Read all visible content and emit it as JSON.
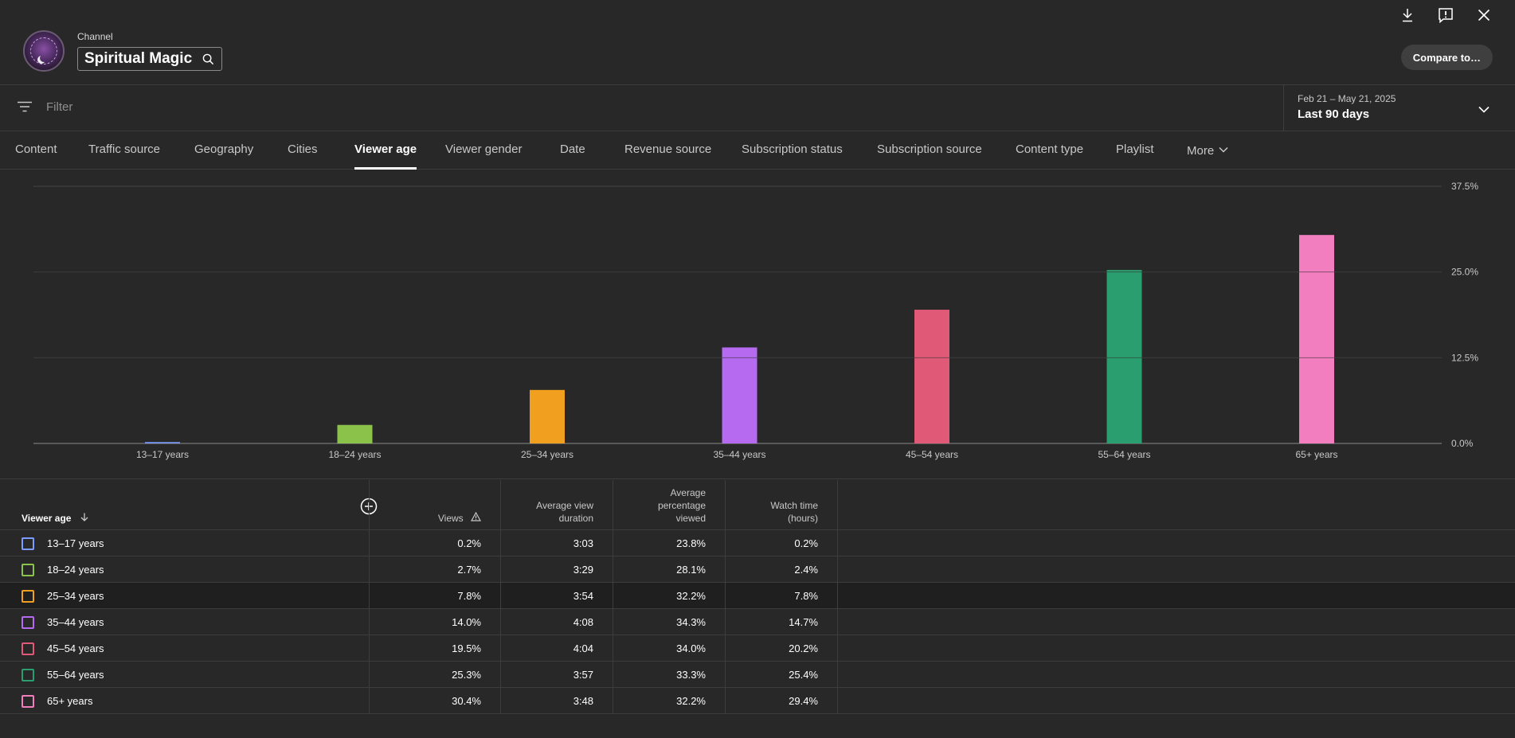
{
  "header": {
    "channel_label": "Channel",
    "channel_name": "Spiritual Magic",
    "compare_label": "Compare to…"
  },
  "filter": {
    "placeholder": "Filter"
  },
  "date": {
    "range": "Feb 21 – May 21, 2025",
    "label": "Last 90 days"
  },
  "tabs": [
    {
      "label": "Content"
    },
    {
      "label": "Traffic source"
    },
    {
      "label": "Geography"
    },
    {
      "label": "Cities"
    },
    {
      "label": "Viewer age"
    },
    {
      "label": "Viewer gender"
    },
    {
      "label": "Date"
    },
    {
      "label": "Revenue source"
    },
    {
      "label": "Subscription status"
    },
    {
      "label": "Subscription source"
    },
    {
      "label": "Content type"
    },
    {
      "label": "Playlist"
    },
    {
      "label": "More"
    }
  ],
  "active_tab": "Viewer age",
  "chart_data": {
    "type": "bar",
    "categories": [
      "13–17 years",
      "18–24 years",
      "25–34 years",
      "35–44 years",
      "45–54 years",
      "55–64 years",
      "65+ years"
    ],
    "values": [
      0.2,
      2.7,
      7.8,
      14.0,
      19.5,
      25.3,
      30.4
    ],
    "colors": [
      "#7c9cff",
      "#8bc34a",
      "#f0a01e",
      "#b56af0",
      "#e05a78",
      "#2a9e6e",
      "#f27dbf"
    ],
    "ylim": [
      0,
      37.5
    ],
    "y_ticks": [
      "0.0%",
      "12.5%",
      "25.0%",
      "37.5%"
    ],
    "y_tick_values": [
      0,
      12.5,
      25,
      37.5
    ],
    "grid": true
  },
  "table": {
    "headers": {
      "dimension": "Viewer age",
      "views": "Views",
      "avg_view_duration": [
        "Average view",
        "duration"
      ],
      "avg_pct_viewed": [
        "Average",
        "percentage",
        "viewed"
      ],
      "watch_time": [
        "Watch time",
        "(hours)"
      ]
    },
    "rows": [
      {
        "label": "13–17 years",
        "views": "0.2%",
        "duration": "3:03",
        "pct": "23.8%",
        "watch": "0.2%"
      },
      {
        "label": "18–24 years",
        "views": "2.7%",
        "duration": "3:29",
        "pct": "28.1%",
        "watch": "2.4%"
      },
      {
        "label": "25–34 years",
        "views": "7.8%",
        "duration": "3:54",
        "pct": "32.2%",
        "watch": "7.8%"
      },
      {
        "label": "35–44 years",
        "views": "14.0%",
        "duration": "4:08",
        "pct": "34.3%",
        "watch": "14.7%"
      },
      {
        "label": "45–54 years",
        "views": "19.5%",
        "duration": "4:04",
        "pct": "34.0%",
        "watch": "20.2%"
      },
      {
        "label": "55–64 years",
        "views": "25.3%",
        "duration": "3:57",
        "pct": "33.3%",
        "watch": "25.4%"
      },
      {
        "label": "65+ years",
        "views": "30.4%",
        "duration": "3:48",
        "pct": "32.2%",
        "watch": "29.4%"
      }
    ]
  }
}
